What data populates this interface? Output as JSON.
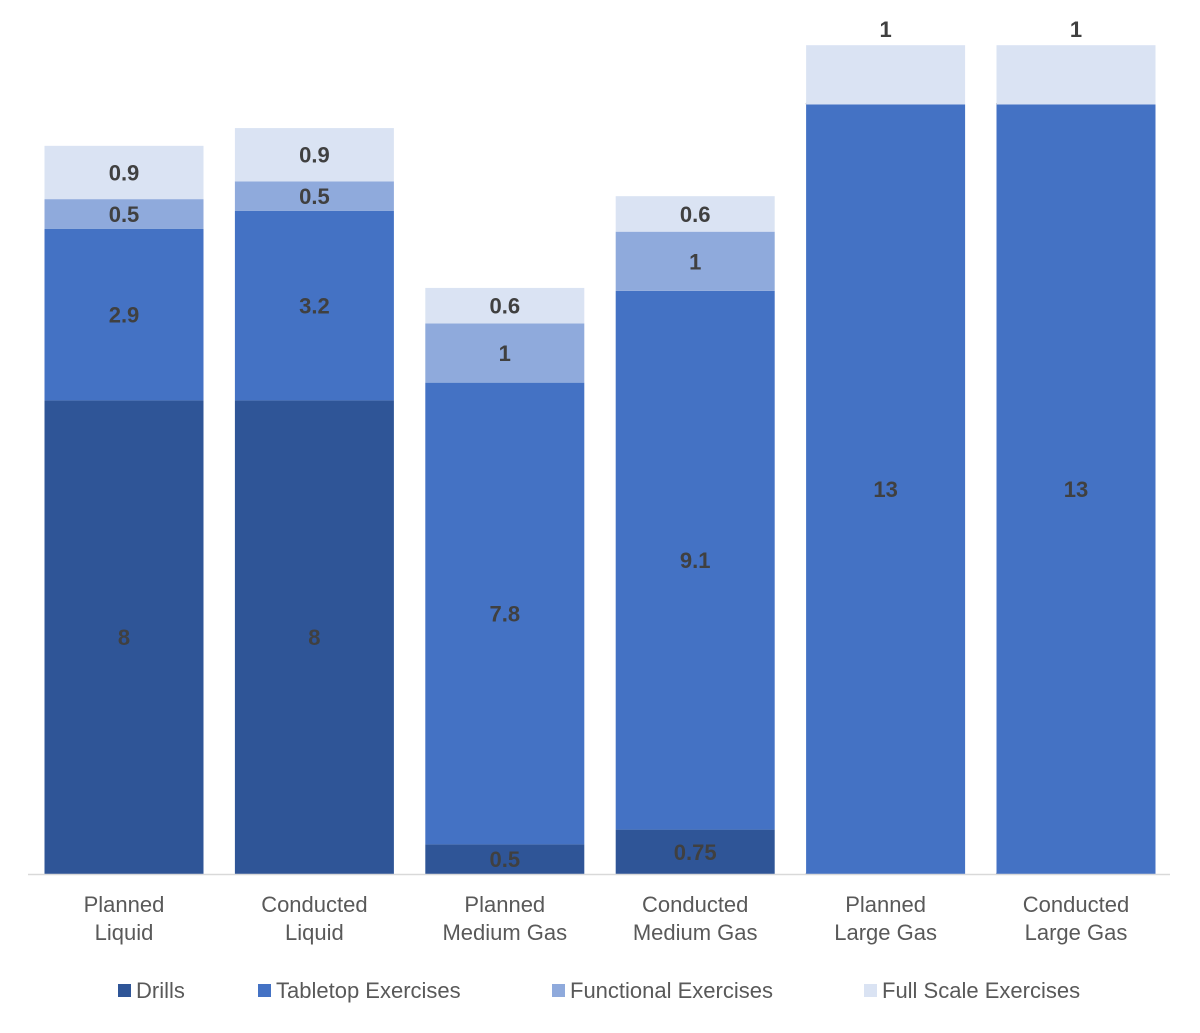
{
  "chart_data": {
    "type": "bar",
    "stacked": true,
    "title": "",
    "xlabel": "",
    "ylabel": "",
    "ylim": [
      0,
      14
    ],
    "grid": false,
    "legend_position": "bottom",
    "categories": [
      [
        "Planned",
        "Liquid"
      ],
      [
        "Conducted",
        "Liquid"
      ],
      [
        "Planned",
        "Medium Gas"
      ],
      [
        "Conducted",
        "Medium Gas"
      ],
      [
        "Planned",
        "Large Gas"
      ],
      [
        "Conducted",
        "Large Gas"
      ]
    ],
    "series": [
      {
        "name": "Drills",
        "color": "#2F5597",
        "values": [
          8,
          8,
          0.5,
          0.75,
          0,
          0
        ]
      },
      {
        "name": "Tabletop Exercises",
        "color": "#4472C4",
        "values": [
          2.9,
          3.2,
          7.8,
          9.1,
          13,
          13
        ]
      },
      {
        "name": "Functional Exercises",
        "color": "#8FAADC",
        "values": [
          0.5,
          0.5,
          1,
          1,
          0,
          0
        ]
      },
      {
        "name": "Full Scale Exercises",
        "color": "#DAE3F3",
        "values": [
          0.9,
          0.9,
          0.6,
          0.6,
          1,
          1
        ]
      }
    ]
  }
}
